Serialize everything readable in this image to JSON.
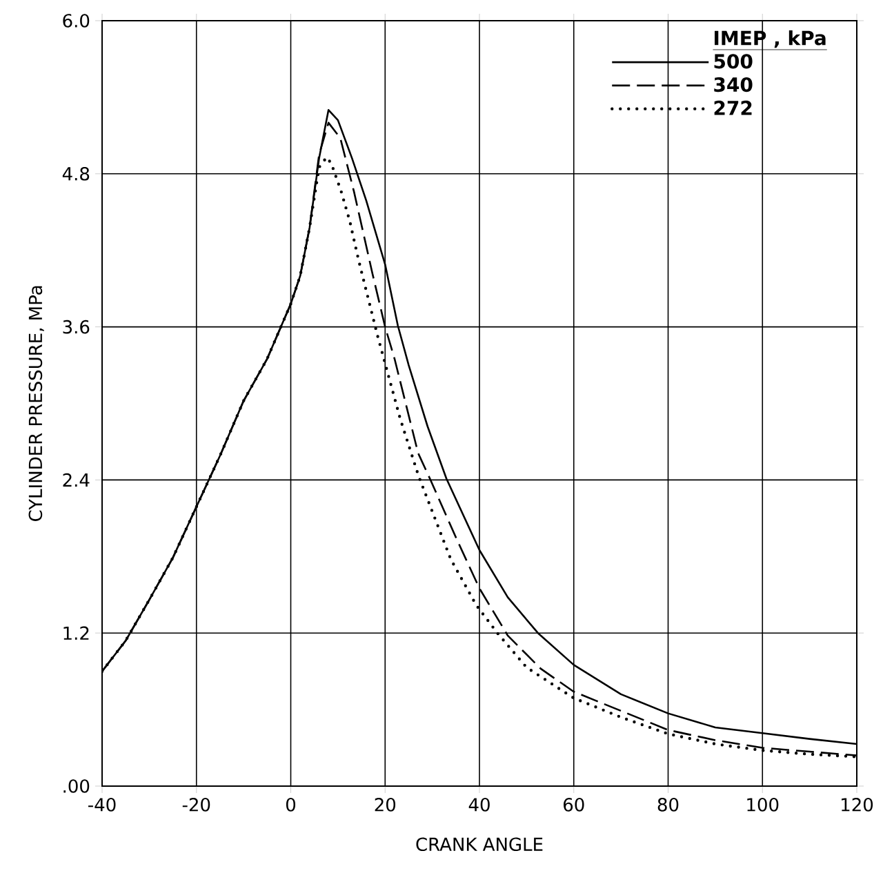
{
  "chart_data": {
    "type": "line",
    "xlabel": "CRANK ANGLE",
    "ylabel": "CYLINDER PRESSURE, MPa",
    "legend_title": "IMEP , kPa",
    "xlim": [
      -40,
      120
    ],
    "xticks": [
      -40,
      -20,
      0,
      20,
      40,
      60,
      80,
      100,
      120
    ],
    "ylim": [
      0,
      6
    ],
    "yticks": [
      {
        "value": 0,
        "label": ".00"
      },
      {
        "value": 1.2,
        "label": "1.2"
      },
      {
        "value": 2.4,
        "label": "2.4"
      },
      {
        "value": 3.6,
        "label": "3.6"
      },
      {
        "value": 4.8,
        "label": "4.8"
      },
      {
        "value": 6,
        "label": "6.0"
      }
    ],
    "grid": true,
    "legend": "top right",
    "series": [
      {
        "name": "500",
        "color": "#000000",
        "line_style": "solid",
        "x": [
          -40,
          -35,
          -30,
          -25,
          -20,
          -15,
          -10,
          -5,
          0,
          2,
          4,
          6,
          8,
          10,
          13,
          16,
          20,
          22.7,
          25,
          29,
          33,
          40,
          46,
          52.4,
          60,
          70,
          80,
          90,
          100,
          110,
          120
        ],
        "values": [
          0.9,
          1.14,
          1.46,
          1.79,
          2.19,
          2.59,
          3.02,
          3.35,
          3.78,
          4.0,
          4.38,
          4.92,
          5.3,
          5.22,
          4.92,
          4.59,
          4.09,
          3.61,
          3.3,
          2.82,
          2.41,
          1.85,
          1.48,
          1.2,
          0.95,
          0.72,
          0.57,
          0.46,
          0.415,
          0.37,
          0.33
        ]
      },
      {
        "name": "340",
        "color": "#000000",
        "line_style": "dashed",
        "x": [
          -40,
          -35,
          -30,
          -25,
          -20,
          -15,
          -10,
          -5,
          0,
          2,
          4,
          6,
          8,
          10.5,
          13.4,
          17.3,
          20,
          22,
          27,
          29.5,
          35,
          40,
          46,
          53,
          60,
          70,
          80,
          90,
          100,
          110,
          120
        ],
        "values": [
          0.9,
          1.14,
          1.46,
          1.79,
          2.19,
          2.59,
          3.02,
          3.35,
          3.78,
          4.0,
          4.38,
          4.95,
          5.2,
          5.08,
          4.66,
          4.02,
          3.6,
          3.35,
          2.61,
          2.41,
          1.95,
          1.55,
          1.18,
          0.92,
          0.74,
          0.59,
          0.44,
          0.36,
          0.3,
          0.27,
          0.24
        ]
      },
      {
        "name": "272",
        "color": "#000000",
        "line_style": "dotted",
        "x": [
          -40,
          -35,
          -30,
          -25,
          -20,
          -15,
          -10,
          -5,
          0,
          2,
          4,
          6,
          7.6,
          8.6,
          10.7,
          12.5,
          14.4,
          16.3,
          18.4,
          23.2,
          27.1,
          33.9,
          39.3,
          43.8,
          50,
          60,
          70,
          80,
          90,
          100,
          110,
          120
        ],
        "values": [
          0.9,
          1.14,
          1.46,
          1.79,
          2.19,
          2.59,
          3.02,
          3.35,
          3.78,
          4.0,
          4.38,
          4.85,
          4.93,
          4.88,
          4.66,
          4.43,
          4.12,
          3.84,
          3.53,
          2.88,
          2.43,
          1.78,
          1.42,
          1.2,
          0.93,
          0.69,
          0.54,
          0.41,
          0.33,
          0.28,
          0.25,
          0.23
        ]
      }
    ]
  }
}
